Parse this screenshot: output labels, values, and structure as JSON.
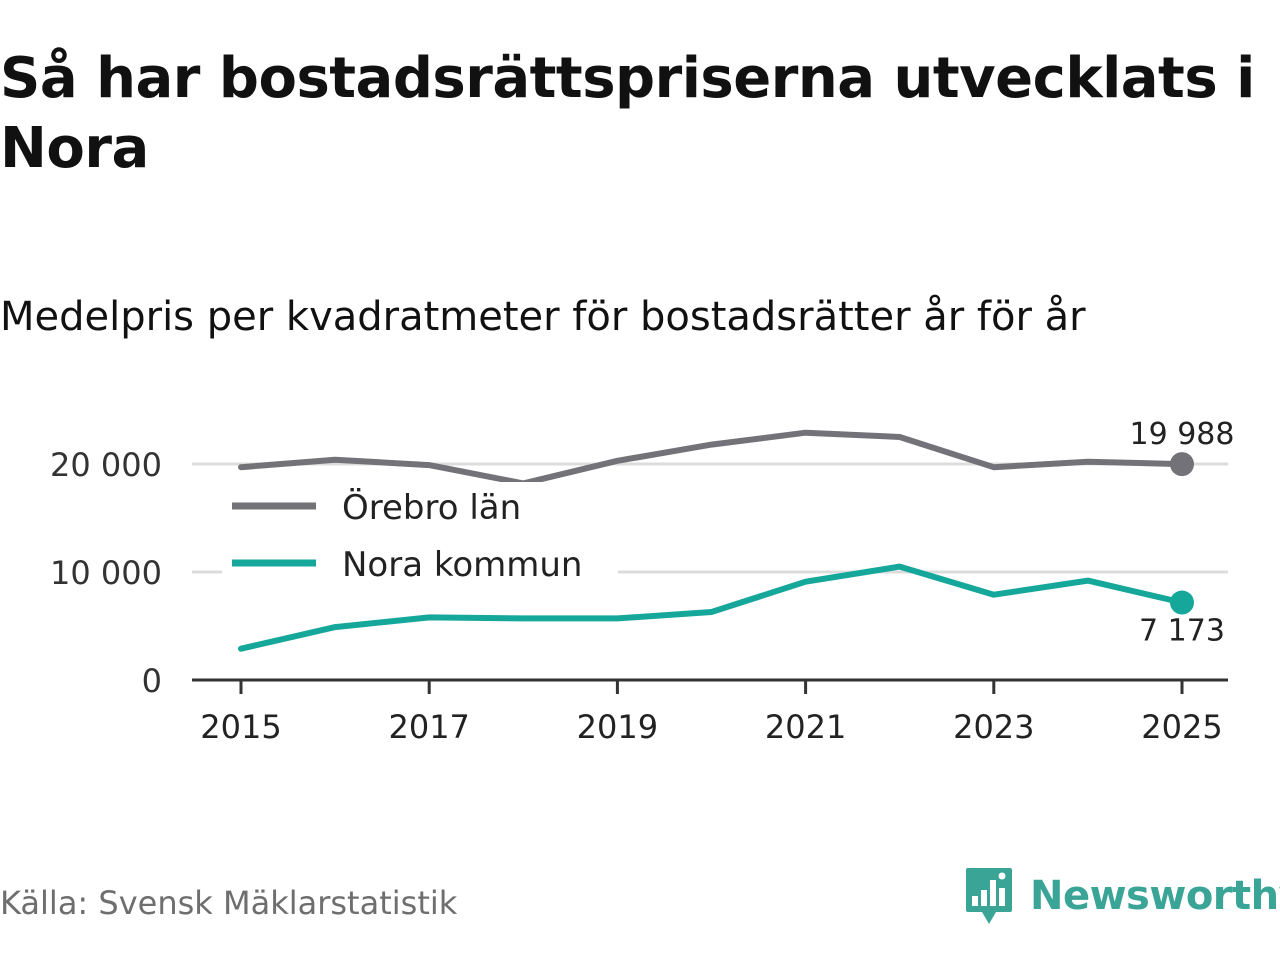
{
  "header": {
    "title": "Så har bostadsrättspriserna utvecklats i Nora",
    "subtitle": "Medelpris per kvadratmeter för bostadsrätter år för år"
  },
  "footer": {
    "source": "Källa: Svensk Mäklarstatistik",
    "brand": "Newsworthy",
    "brand_icon": "newsworthy-logo-icon"
  },
  "chart_data": {
    "type": "line",
    "title": "Så har bostadsrättspriserna utvecklats i Nora",
    "subtitle": "Medelpris per kvadratmeter för bostadsrätter år för år",
    "xlabel": "",
    "ylabel": "",
    "x": [
      2015,
      2016,
      2017,
      2018,
      2019,
      2020,
      2021,
      2022,
      2023,
      2024,
      2025
    ],
    "xlim": [
      2014.5,
      2025.5
    ],
    "ylim": [
      0,
      20000
    ],
    "x_ticks": [
      2015,
      2017,
      2019,
      2021,
      2023,
      2025
    ],
    "x_tick_labels": [
      "2015",
      "2017",
      "2019",
      "2021",
      "2023",
      "2025"
    ],
    "y_ticks": [
      0,
      10000,
      20000
    ],
    "y_tick_labels": [
      "0",
      "10 000",
      "20 000"
    ],
    "grid": true,
    "legend_position": "top-left",
    "series": [
      {
        "name": "Örebro län",
        "color": "#737278",
        "values": [
          19700,
          20400,
          19900,
          18200,
          20300,
          21800,
          22900,
          22500,
          19700,
          20200,
          19988
        ],
        "end_label": "19 988"
      },
      {
        "name": "Nora kommun",
        "color": "#16a79b",
        "values": [
          2900,
          4900,
          5800,
          5700,
          5700,
          6300,
          9100,
          10500,
          7900,
          9200,
          7173
        ],
        "end_label": "7 173"
      }
    ]
  }
}
